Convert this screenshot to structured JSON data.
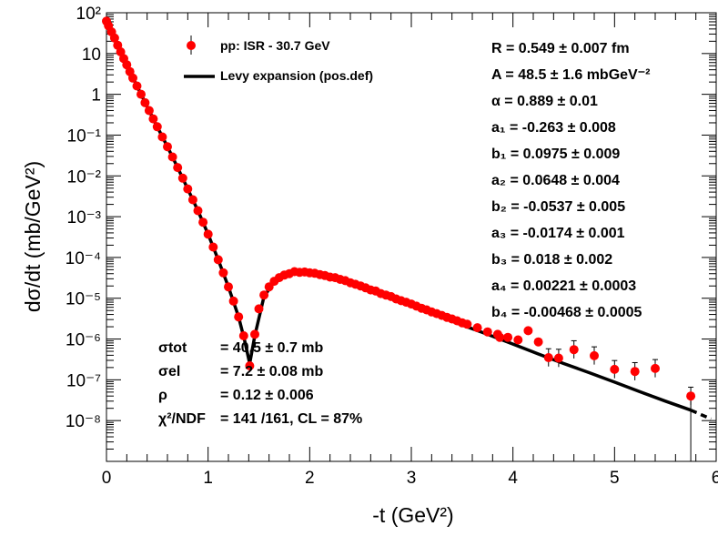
{
  "chart_data": {
    "type": "scatter",
    "x_axis": {
      "label": "-t (GeV²)",
      "range": [
        0,
        6
      ],
      "ticks": [
        "0",
        "1",
        "2",
        "3",
        "4",
        "5",
        "6"
      ]
    },
    "y_axis": {
      "label": "dσ/dt (mb/GeV²)",
      "scale": "log",
      "range": [
        1e-09,
        100
      ],
      "ticks": [
        "10⁻⁸",
        "10⁻⁷",
        "10⁻⁶",
        "10⁻⁵",
        "10⁻⁴",
        "10⁻³",
        "10⁻²",
        "10⁻¹",
        "1",
        "10",
        "10²"
      ]
    },
    "legend": {
      "placement": "top-left",
      "entries": [
        {
          "label": "pp: ISR - 30.7 GeV",
          "marker": "circle",
          "color": "#ff0000"
        },
        {
          "label": "Levy expansion (pos.def)",
          "marker": "line",
          "color": "#000000"
        }
      ]
    },
    "series": [
      {
        "name": "pp: ISR - 30.7 GeV",
        "color": "#ff0000",
        "points": [
          {
            "x": 0.0,
            "y": 62
          },
          {
            "x": 0.02,
            "y": 48
          },
          {
            "x": 0.05,
            "y": 34
          },
          {
            "x": 0.08,
            "y": 24
          },
          {
            "x": 0.11,
            "y": 16
          },
          {
            "x": 0.14,
            "y": 11
          },
          {
            "x": 0.17,
            "y": 7.5
          },
          {
            "x": 0.2,
            "y": 5.3
          },
          {
            "x": 0.23,
            "y": 3.6
          },
          {
            "x": 0.26,
            "y": 2.5
          },
          {
            "x": 0.3,
            "y": 1.6
          },
          {
            "x": 0.34,
            "y": 1.0
          },
          {
            "x": 0.38,
            "y": 0.62
          },
          {
            "x": 0.42,
            "y": 0.4
          },
          {
            "x": 0.46,
            "y": 0.25
          },
          {
            "x": 0.5,
            "y": 0.16
          },
          {
            "x": 0.55,
            "y": 0.09
          },
          {
            "x": 0.6,
            "y": 0.052
          },
          {
            "x": 0.65,
            "y": 0.029
          },
          {
            "x": 0.7,
            "y": 0.016
          },
          {
            "x": 0.75,
            "y": 0.0088
          },
          {
            "x": 0.8,
            "y": 0.0048
          },
          {
            "x": 0.85,
            "y": 0.0026
          },
          {
            "x": 0.9,
            "y": 0.0014
          },
          {
            "x": 0.95,
            "y": 0.00073
          },
          {
            "x": 1.0,
            "y": 0.00037
          },
          {
            "x": 1.05,
            "y": 0.00018
          },
          {
            "x": 1.1,
            "y": 8.8e-05
          },
          {
            "x": 1.15,
            "y": 4.2e-05
          },
          {
            "x": 1.2,
            "y": 1.9e-05
          },
          {
            "x": 1.25,
            "y": 8.5e-06
          },
          {
            "x": 1.3,
            "y": 3.5e-06
          },
          {
            "x": 1.35,
            "y": 1.2e-06
          },
          {
            "x": 1.41,
            "y": 2.2e-07
          },
          {
            "x": 1.46,
            "y": 1.3e-06
          },
          {
            "x": 1.5,
            "y": 5.5e-06
          },
          {
            "x": 1.55,
            "y": 1.2e-05
          },
          {
            "x": 1.6,
            "y": 1.9e-05
          },
          {
            "x": 1.65,
            "y": 2.6e-05
          },
          {
            "x": 1.7,
            "y": 3.2e-05
          },
          {
            "x": 1.75,
            "y": 3.7e-05
          },
          {
            "x": 1.8,
            "y": 4e-05
          },
          {
            "x": 1.85,
            "y": 4.5e-05
          },
          {
            "x": 1.9,
            "y": 4.3e-05
          },
          {
            "x": 1.95,
            "y": 4.4e-05
          },
          {
            "x": 2.0,
            "y": 4.2e-05
          },
          {
            "x": 2.05,
            "y": 4.1e-05
          },
          {
            "x": 2.1,
            "y": 3.8e-05
          },
          {
            "x": 2.15,
            "y": 3.6e-05
          },
          {
            "x": 2.2,
            "y": 3.3e-05
          },
          {
            "x": 2.25,
            "y": 3.2e-05
          },
          {
            "x": 2.3,
            "y": 2.9e-05
          },
          {
            "x": 2.35,
            "y": 2.7e-05
          },
          {
            "x": 2.4,
            "y": 2.4e-05
          },
          {
            "x": 2.45,
            "y": 2.2e-05
          },
          {
            "x": 2.5,
            "y": 2e-05
          },
          {
            "x": 2.55,
            "y": 1.8e-05
          },
          {
            "x": 2.6,
            "y": 1.6e-05
          },
          {
            "x": 2.65,
            "y": 1.5e-05
          },
          {
            "x": 2.7,
            "y": 1.3e-05
          },
          {
            "x": 2.75,
            "y": 1.2e-05
          },
          {
            "x": 2.8,
            "y": 1.1e-05
          },
          {
            "x": 2.85,
            "y": 9.6e-06
          },
          {
            "x": 2.9,
            "y": 8.7e-06
          },
          {
            "x": 2.95,
            "y": 8e-06
          },
          {
            "x": 3.0,
            "y": 7.2e-06
          },
          {
            "x": 3.05,
            "y": 6.4e-06
          },
          {
            "x": 3.1,
            "y": 5.7e-06
          },
          {
            "x": 3.15,
            "y": 5.2e-06
          },
          {
            "x": 3.2,
            "y": 4.6e-06
          },
          {
            "x": 3.25,
            "y": 4.2e-06
          },
          {
            "x": 3.3,
            "y": 3.8e-06
          },
          {
            "x": 3.35,
            "y": 3.4e-06
          },
          {
            "x": 3.4,
            "y": 3.1e-06
          },
          {
            "x": 3.45,
            "y": 2.8e-06
          },
          {
            "x": 3.5,
            "y": 2.5e-06
          },
          {
            "x": 3.55,
            "y": 2.3e-06
          },
          {
            "x": 3.65,
            "y": 1.9e-06
          },
          {
            "x": 3.75,
            "y": 1.5e-06
          },
          {
            "x": 3.85,
            "y": 1.3e-06
          },
          {
            "x": 3.87,
            "y": 1.1e-06
          },
          {
            "x": 3.95,
            "y": 1.1e-06
          },
          {
            "x": 4.05,
            "y": 9.5e-07
          },
          {
            "x": 4.15,
            "y": 1.6e-06
          },
          {
            "x": 4.25,
            "y": 8.5e-07
          },
          {
            "x": 4.35,
            "y": 3.5e-07
          },
          {
            "x": 4.45,
            "y": 3.4e-07
          },
          {
            "x": 4.6,
            "y": 5.5e-07
          },
          {
            "x": 4.8,
            "y": 3.9e-07
          },
          {
            "x": 5.0,
            "y": 1.8e-07
          },
          {
            "x": 5.2,
            "y": 1.6e-07
          },
          {
            "x": 5.4,
            "y": 1.9e-07
          },
          {
            "x": 5.75,
            "y": 4e-08
          }
        ]
      },
      {
        "name": "Levy expansion (pos.def)",
        "color": "#000000",
        "style": "line",
        "points": [
          {
            "x": 0.0,
            "y": 62
          },
          {
            "x": 0.1,
            "y": 18
          },
          {
            "x": 0.2,
            "y": 5.3
          },
          {
            "x": 0.3,
            "y": 1.6
          },
          {
            "x": 0.4,
            "y": 0.5
          },
          {
            "x": 0.5,
            "y": 0.16
          },
          {
            "x": 0.6,
            "y": 0.052
          },
          {
            "x": 0.7,
            "y": 0.016
          },
          {
            "x": 0.8,
            "y": 0.0048
          },
          {
            "x": 0.9,
            "y": 0.0014
          },
          {
            "x": 1.0,
            "y": 0.00037
          },
          {
            "x": 1.1,
            "y": 8.8e-05
          },
          {
            "x": 1.2,
            "y": 1.9e-05
          },
          {
            "x": 1.3,
            "y": 3.5e-06
          },
          {
            "x": 1.36,
            "y": 9e-07
          },
          {
            "x": 1.41,
            "y": 2.5e-07
          },
          {
            "x": 1.46,
            "y": 1.2e-06
          },
          {
            "x": 1.55,
            "y": 1.1e-05
          },
          {
            "x": 1.65,
            "y": 2.5e-05
          },
          {
            "x": 1.75,
            "y": 3.6e-05
          },
          {
            "x": 1.85,
            "y": 4.1e-05
          },
          {
            "x": 1.95,
            "y": 4.2e-05
          },
          {
            "x": 2.1,
            "y": 3.8e-05
          },
          {
            "x": 2.3,
            "y": 2.9e-05
          },
          {
            "x": 2.5,
            "y": 2e-05
          },
          {
            "x": 2.75,
            "y": 1.2e-05
          },
          {
            "x": 3.0,
            "y": 6.8e-06
          },
          {
            "x": 3.25,
            "y": 3.9e-06
          },
          {
            "x": 3.5,
            "y": 2.2e-06
          },
          {
            "x": 3.75,
            "y": 1.3e-06
          },
          {
            "x": 4.0,
            "y": 7.5e-07
          },
          {
            "x": 4.25,
            "y": 4.3e-07
          },
          {
            "x": 4.5,
            "y": 2.5e-07
          },
          {
            "x": 4.75,
            "y": 1.5e-07
          },
          {
            "x": 5.0,
            "y": 8.8e-08
          },
          {
            "x": 5.25,
            "y": 5.1e-08
          },
          {
            "x": 5.5,
            "y": 3e-08
          },
          {
            "x": 5.75,
            "y": 1.8e-08
          }
        ]
      },
      {
        "name": "extrapolation",
        "color": "#000000",
        "style": "dashed",
        "points": [
          {
            "x": 5.75,
            "y": 1.8e-08
          },
          {
            "x": 5.85,
            "y": 1.4e-08
          },
          {
            "x": 5.95,
            "y": 1.1e-08
          }
        ]
      }
    ],
    "fit_parameters": [
      {
        "name": "R",
        "value": "0.549",
        "error": "0.007",
        "unit": "fm"
      },
      {
        "name": "A",
        "value": "48.5",
        "error": "1.6",
        "unit": "mbGeV⁻²"
      },
      {
        "name": "α",
        "value": "0.889",
        "error": "0.01",
        "unit": ""
      },
      {
        "name": "a₁",
        "value": "-0.263",
        "error": "0.008",
        "unit": ""
      },
      {
        "name": "b₁",
        "value": "0.0975",
        "error": "0.009",
        "unit": ""
      },
      {
        "name": "a₂",
        "value": "0.0648",
        "error": "0.004",
        "unit": ""
      },
      {
        "name": "b₂",
        "value": "-0.0537",
        "error": "0.005",
        "unit": ""
      },
      {
        "name": "a₃",
        "value": "-0.0174",
        "error": "0.001",
        "unit": ""
      },
      {
        "name": "b₃",
        "value": "0.018",
        "error": "0.002",
        "unit": ""
      },
      {
        "name": "a₄",
        "value": "0.00221",
        "error": "0.0003",
        "unit": ""
      },
      {
        "name": "b₄",
        "value": "-0.00468",
        "error": "0.0005",
        "unit": ""
      }
    ],
    "results": [
      {
        "name": "σtot",
        "value": "= 40.5 ± 0.7 mb"
      },
      {
        "name": "σel",
        "value": "= 7.2 ± 0.08 mb"
      },
      {
        "name": "ρ",
        "value": "= 0.12 ± 0.006"
      },
      {
        "name": "χ²/NDF",
        "value": "= 141 /161,  CL = 87%"
      }
    ]
  }
}
